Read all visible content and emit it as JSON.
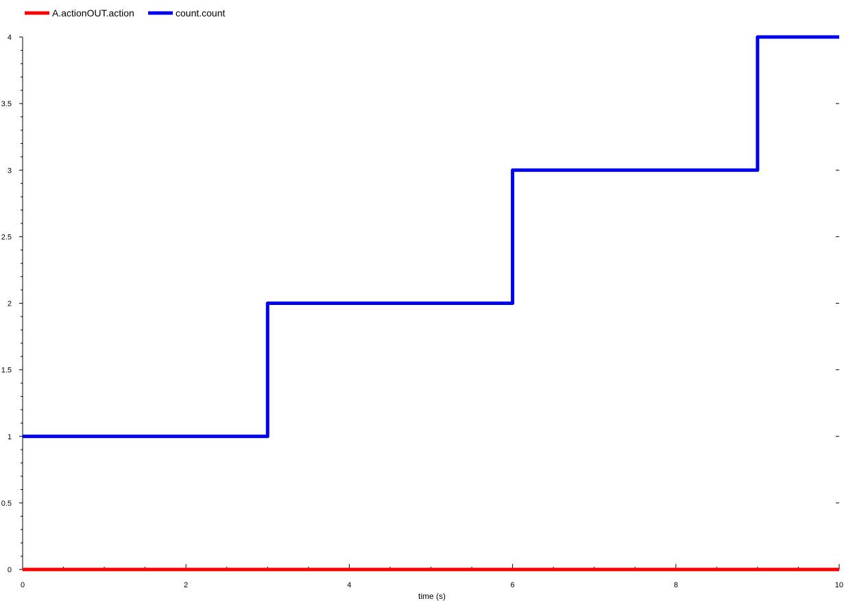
{
  "chart_data": {
    "type": "line",
    "step": true,
    "title": "",
    "xlabel": "time (s)",
    "ylabel": "",
    "xlim": [
      0,
      10
    ],
    "ylim": [
      0,
      4
    ],
    "x_ticks": [
      "0",
      "2",
      "4",
      "6",
      "8",
      "10"
    ],
    "y_ticks": [
      "0",
      "0.5",
      "1",
      "1.5",
      "2",
      "2.5",
      "3",
      "3.5",
      "4"
    ],
    "grid": false,
    "legend_position": "top-left",
    "series": [
      {
        "name": "A.actionOUT.action",
        "color": "#ff0000",
        "x": [
          0,
          10
        ],
        "values": [
          0,
          0
        ]
      },
      {
        "name": "count.count",
        "color": "#0000ee",
        "x": [
          0,
          3,
          3,
          6,
          6,
          9,
          9,
          10
        ],
        "values": [
          1,
          1,
          2,
          2,
          3,
          3,
          4,
          4
        ]
      }
    ]
  }
}
